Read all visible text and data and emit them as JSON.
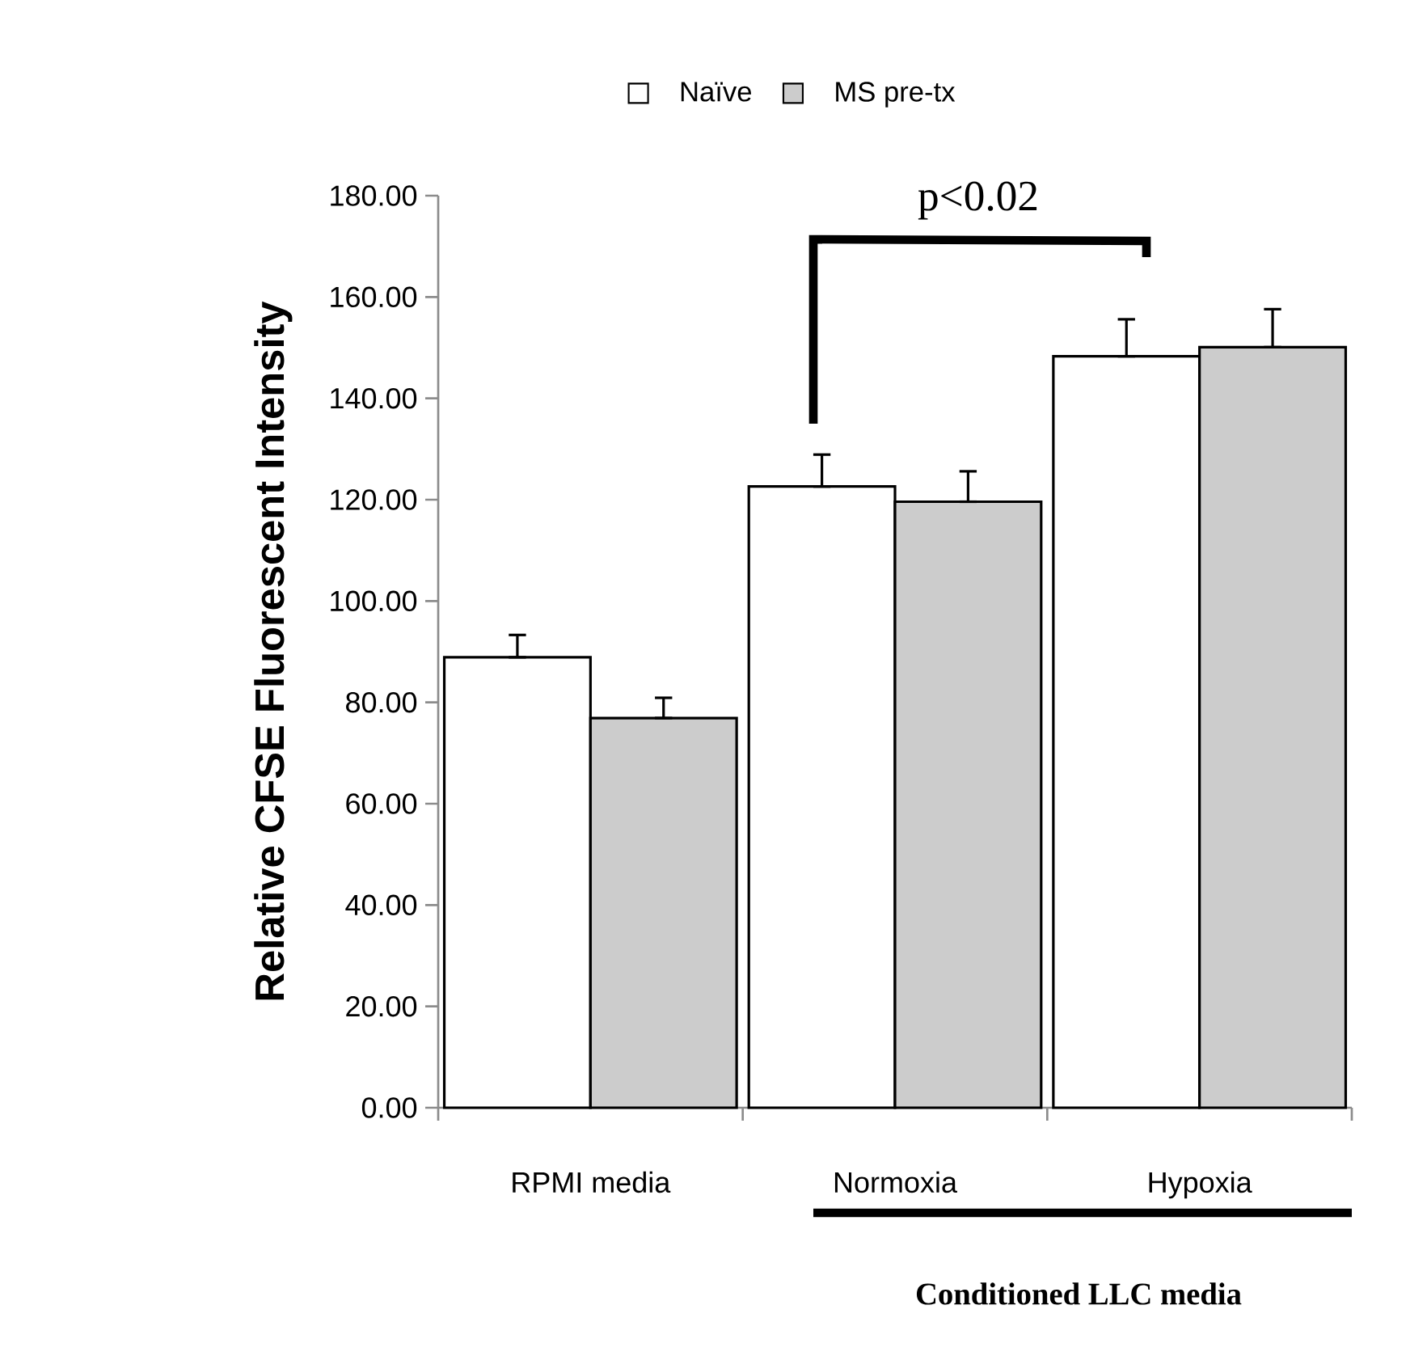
{
  "chart_data": {
    "type": "bar",
    "ylabel": "Relative CFSE Fluorescent Intensity",
    "categories": [
      "RPMI media",
      "Normoxia",
      "Hypoxia"
    ],
    "series": [
      {
        "name": "Naïve",
        "color": "#ffffff",
        "values": [
          88.9,
          122.6,
          148.3
        ],
        "errors": [
          [
            88.9,
            93.3
          ],
          [
            122.6,
            128.9
          ],
          [
            148.3,
            155.6
          ]
        ]
      },
      {
        "name": "MS pre-tx",
        "color": "#cccccc",
        "values": [
          76.9,
          119.6,
          150.1
        ],
        "errors": [
          [
            76.9,
            80.9
          ],
          [
            119.6,
            125.6
          ],
          [
            150.1,
            157.6
          ]
        ]
      }
    ],
    "ylim": [
      0,
      180
    ],
    "yticks": [
      {
        "value": 0,
        "label": "0.00"
      },
      {
        "value": 20,
        "label": "20.00"
      },
      {
        "value": 40,
        "label": "40.00"
      },
      {
        "value": 60,
        "label": "60.00"
      },
      {
        "value": 80,
        "label": "80.00"
      },
      {
        "value": 100,
        "label": "100.00"
      },
      {
        "value": 120,
        "label": "120.00"
      },
      {
        "value": 140,
        "label": "140.00"
      },
      {
        "value": 160,
        "label": "160.00"
      },
      {
        "value": 180,
        "label": "180.00"
      }
    ],
    "legend": "top left",
    "annotations": [
      "p<0.02",
      "Conditioned LLC media"
    ]
  }
}
